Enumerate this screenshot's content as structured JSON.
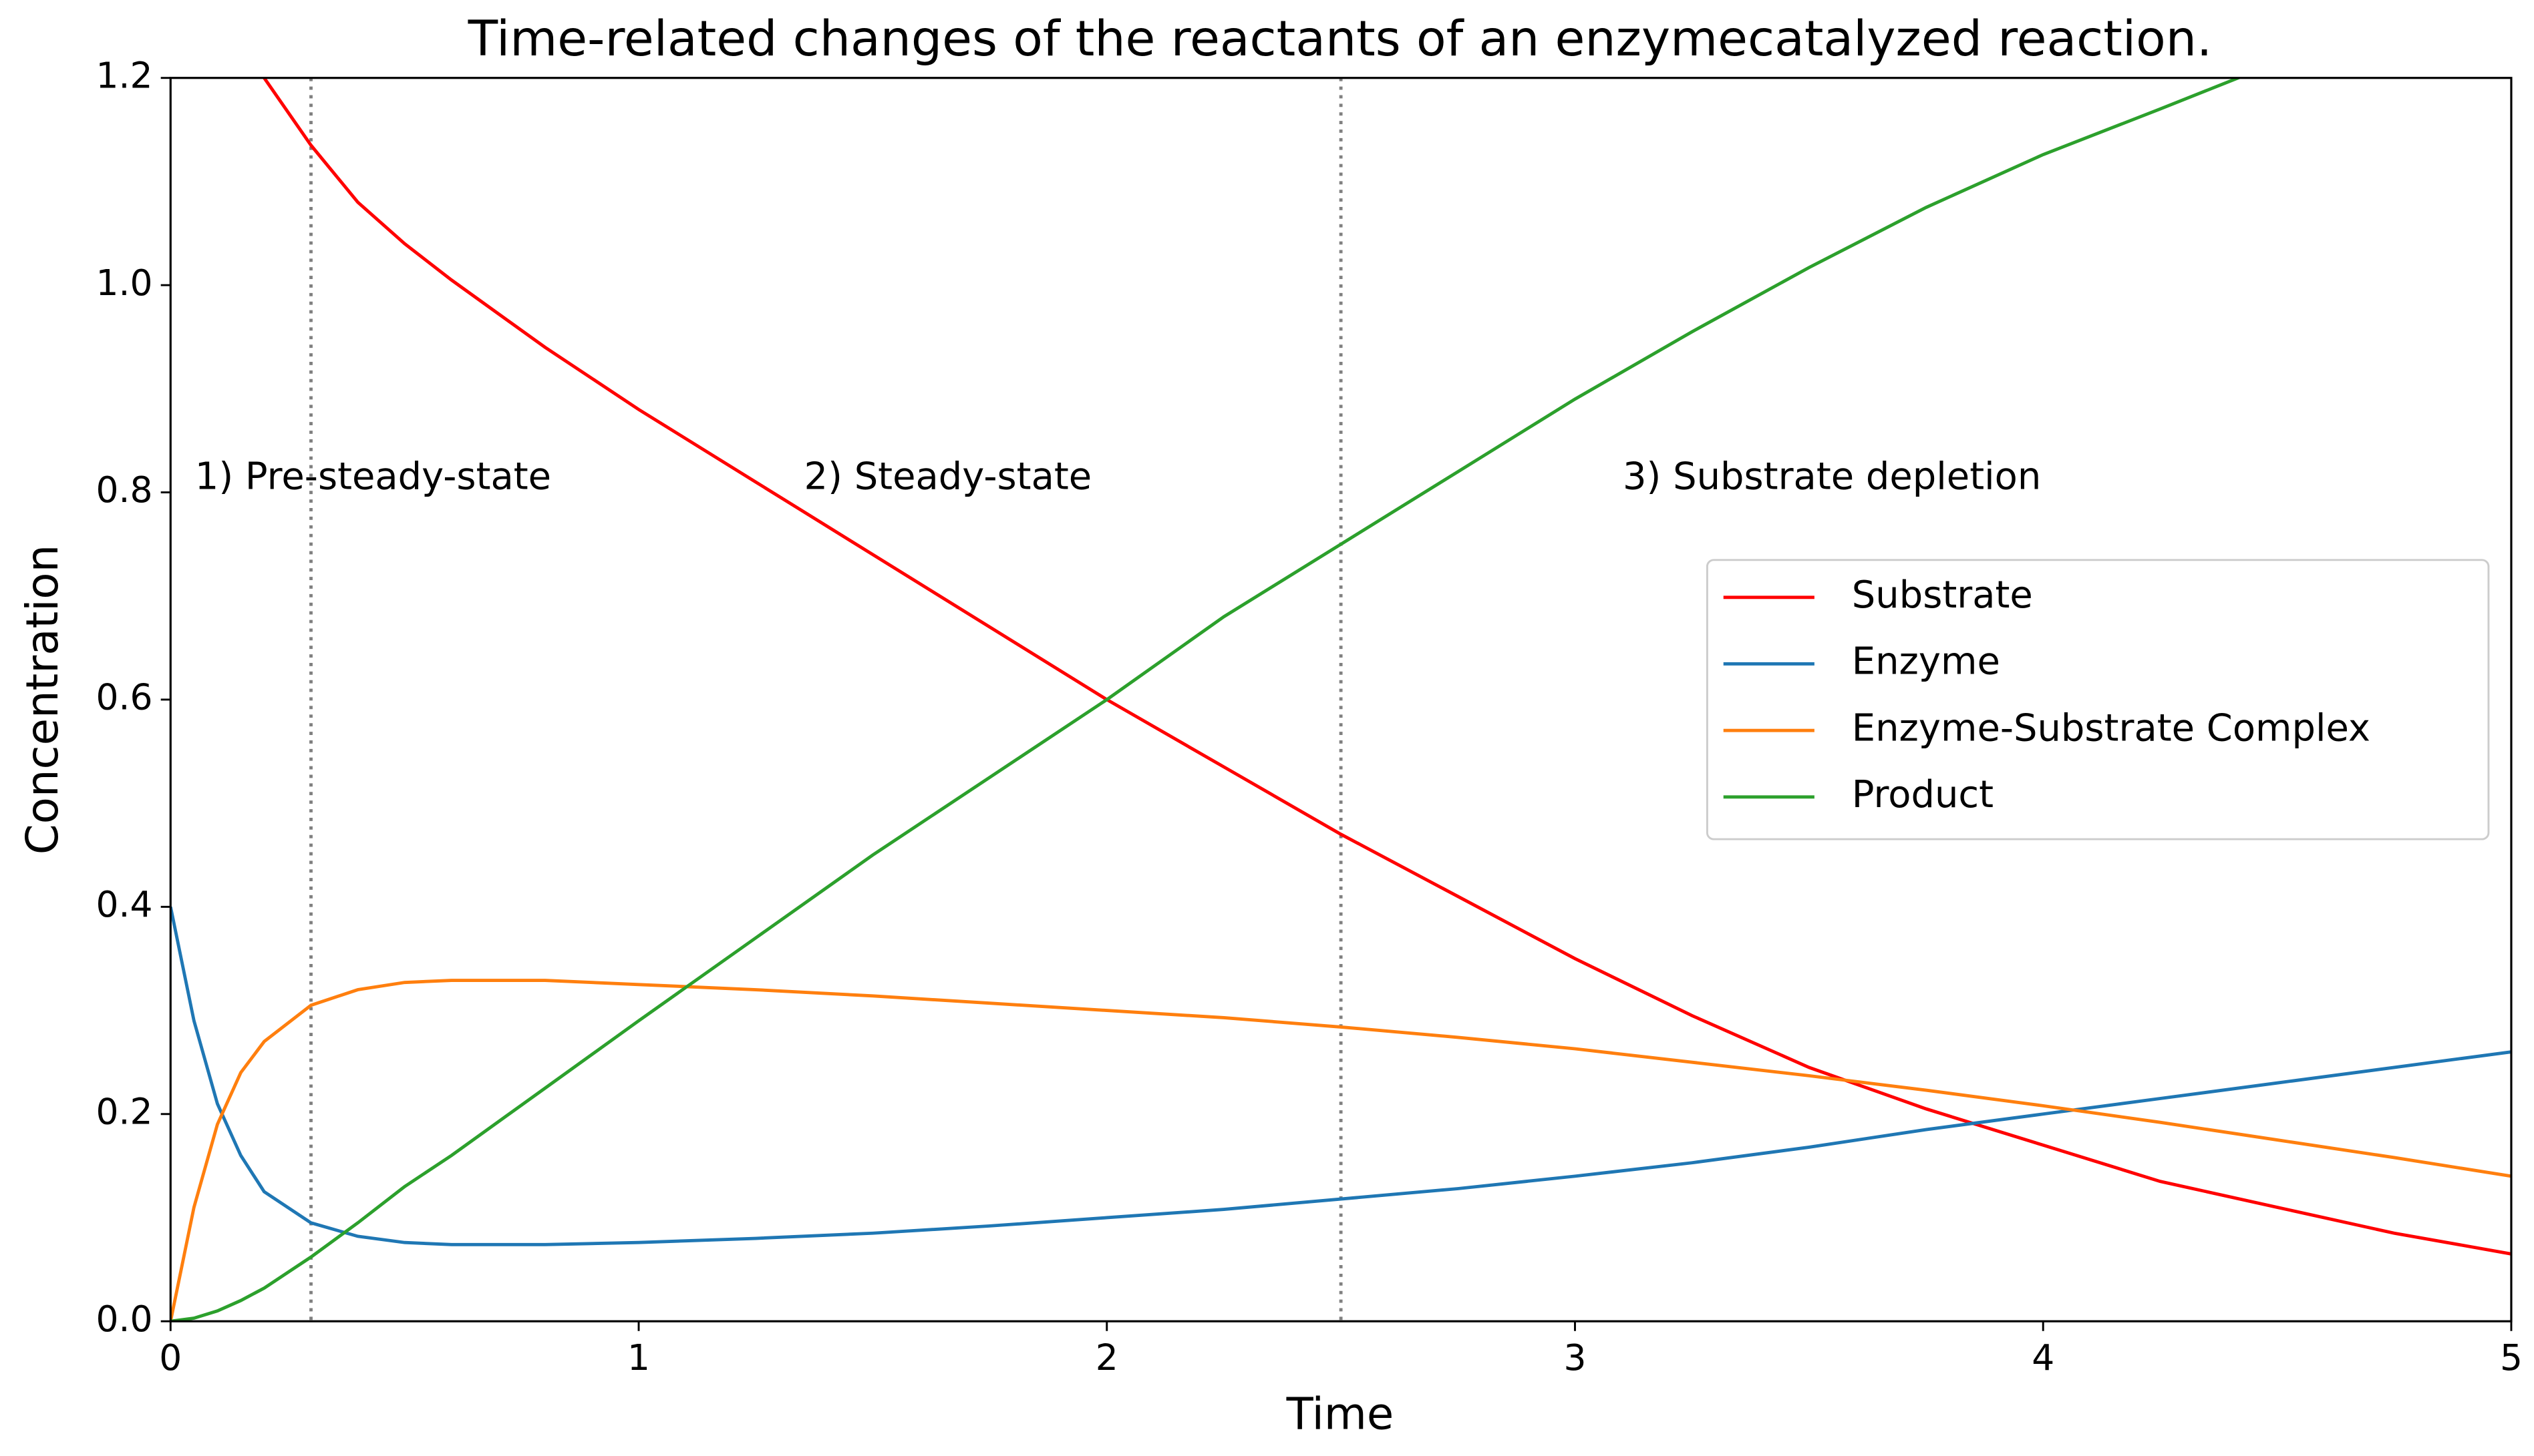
{
  "chart_data": {
    "type": "line",
    "title": "Time-related changes of the reactants of an enzymecatalyzed reaction.",
    "xlabel": "Time",
    "ylabel": "Concentration",
    "x": [
      0,
      0.05,
      0.1,
      0.15,
      0.2,
      0.3,
      0.4,
      0.5,
      0.6,
      0.8,
      1,
      1.25,
      1.5,
      1.75,
      2,
      2.25,
      2.5,
      2.75,
      3,
      3.25,
      3.5,
      3.75,
      4,
      4.25,
      4.5,
      4.75,
      5
    ],
    "series": [
      {
        "name": "Substrate",
        "color": "#ff0000",
        "values": [
          null,
          null,
          null,
          null,
          1.2,
          1.135,
          1.08,
          1.04,
          1.005,
          0.94,
          0.88,
          0.81,
          0.74,
          0.67,
          0.6,
          0.535,
          0.47,
          0.41,
          0.35,
          0.295,
          0.245,
          0.205,
          0.17,
          0.135,
          0.11,
          0.085,
          0.065
        ]
      },
      {
        "name": "Enzyme",
        "color": "#1f77b4",
        "values": [
          0.4,
          0.29,
          0.21,
          0.16,
          0.125,
          0.095,
          0.082,
          0.076,
          0.074,
          0.074,
          0.076,
          0.08,
          0.085,
          0.092,
          0.1,
          0.108,
          0.118,
          0.128,
          0.14,
          0.153,
          0.168,
          0.185,
          0.2,
          0.215,
          0.23,
          0.245,
          0.26
        ]
      },
      {
        "name": "Enzyme-Substrate Complex",
        "color": "#ff7f0e",
        "values": [
          0,
          0.11,
          0.19,
          0.24,
          0.27,
          0.305,
          0.32,
          0.327,
          0.329,
          0.329,
          0.325,
          0.32,
          0.314,
          0.307,
          0.3,
          0.293,
          0.284,
          0.274,
          0.263,
          0.25,
          0.237,
          0.223,
          0.208,
          0.192,
          0.175,
          0.158,
          0.14
        ]
      },
      {
        "name": "Product",
        "color": "#2ca02c",
        "values": [
          0,
          0.003,
          0.01,
          0.02,
          0.032,
          0.062,
          0.095,
          0.13,
          0.16,
          0.225,
          0.29,
          0.37,
          0.45,
          0.525,
          0.6,
          0.68,
          0.75,
          0.82,
          0.89,
          0.955,
          1.017,
          1.075,
          1.126,
          1.17,
          1.215,
          1.255,
          1.3
        ]
      }
    ],
    "vlines": [
      0.3,
      2.5
    ],
    "annotations": [
      "1) Pre-steady-state",
      "2) Steady-state",
      "3) Substrate depletion"
    ],
    "xlim": [
      0,
      5
    ],
    "xticks": [
      0,
      1,
      2,
      3,
      4,
      5
    ],
    "ylim": [
      0,
      1.2
    ],
    "yticks": [
      {
        "value": 0,
        "label": "0.0"
      },
      {
        "value": 0.2,
        "label": "0.2"
      },
      {
        "value": 0.4,
        "label": "0.4"
      },
      {
        "value": 0.6,
        "label": "0.6"
      },
      {
        "value": 0.8,
        "label": "0.8"
      },
      {
        "value": 1.0,
        "label": "1.0"
      },
      {
        "value": 1.2,
        "label": "1.2"
      }
    ],
    "legend": "center right"
  }
}
